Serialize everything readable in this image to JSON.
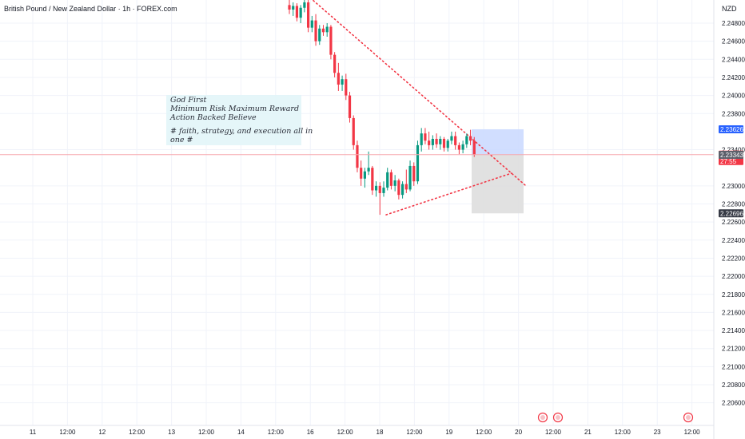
{
  "header": {
    "title": "British Pound / New Zealand Dollar · 1h · FOREX.com",
    "currency": "NZD"
  },
  "note": {
    "lines": [
      "God First",
      "Minimum Risk Maximum Reward",
      "Action Backed Believe",
      "",
      "# faith, strategy, and execution all in",
      "one #"
    ]
  },
  "colors": {
    "up": "#089981",
    "down": "#f23645",
    "trendline": "#f23645",
    "profit_zone": "#c9d8ff",
    "loss_zone": "#dedede",
    "note_bg": "#e0f5f8"
  },
  "chart_data": {
    "type": "candlestick",
    "symbol": "GBPNZD",
    "interval": "1h",
    "y_ticks": [
      "2.24800",
      "2.24600",
      "2.24400",
      "2.24200",
      "2.24000",
      "2.23800",
      "2.23400",
      "2.23000",
      "2.22800",
      "2.22600",
      "2.22400",
      "2.22200",
      "2.22000",
      "2.21800",
      "2.21600",
      "2.21400",
      "2.21200",
      "2.21000",
      "2.20800",
      "2.20600"
    ],
    "x_ticks": [
      "11",
      "12:00",
      "12",
      "12:00",
      "13",
      "12:00",
      "14",
      "12:00",
      "16",
      "12:00",
      "18",
      "12:00",
      "19",
      "12:00",
      "20",
      "12:00",
      "21",
      "12:00",
      "23",
      "12:00"
    ],
    "price_tags": [
      {
        "value": "2.23626",
        "color": "#2962ff",
        "lines": [
          "2.23626"
        ]
      },
      {
        "value": "2.23345",
        "color": "#f23645",
        "lines": [
          "2.23345",
          "27:55"
        ]
      },
      {
        "value": "2.23343",
        "color": "#5d606b",
        "lines": [
          "2.23343"
        ]
      },
      {
        "value": "2.22696",
        "color": "#363a45",
        "lines": [
          "2.22696"
        ]
      }
    ],
    "last_price": 2.23345,
    "position": {
      "entry": 2.23343,
      "target": 2.23626,
      "stop": 2.22696
    },
    "trendlines": [
      {
        "name": "upper-resistance",
        "style": "dotted"
      },
      {
        "name": "lower-support",
        "style": "dotted"
      }
    ],
    "candles": [
      [
        2.25,
        2.2506,
        2.249,
        2.2495
      ],
      [
        2.2495,
        2.2503,
        2.2488,
        2.2499
      ],
      [
        2.2499,
        2.2502,
        2.2482,
        2.2486
      ],
      [
        2.2486,
        2.25,
        2.248,
        2.2497
      ],
      [
        2.2497,
        2.2508,
        2.2492,
        2.2503
      ],
      [
        2.2503,
        2.2506,
        2.247,
        2.2475
      ],
      [
        2.2475,
        2.2488,
        2.247,
        2.2483
      ],
      [
        2.2483,
        2.249,
        2.2455,
        2.246
      ],
      [
        2.246,
        2.2478,
        2.2456,
        2.2474
      ],
      [
        2.2474,
        2.2478,
        2.2466,
        2.247
      ],
      [
        2.247,
        2.248,
        2.2465,
        2.2476
      ],
      [
        2.2476,
        2.2478,
        2.244,
        2.2445
      ],
      [
        2.2445,
        2.2448,
        2.242,
        2.2425
      ],
      [
        2.2425,
        2.2436,
        2.2405,
        2.2412
      ],
      [
        2.2412,
        2.2422,
        2.2405,
        2.2418
      ],
      [
        2.2418,
        2.2424,
        2.2395,
        2.24
      ],
      [
        2.24,
        2.2404,
        2.237,
        2.2375
      ],
      [
        2.2375,
        2.2378,
        2.234,
        2.2345
      ],
      [
        2.2345,
        2.235,
        2.2315,
        2.232
      ],
      [
        2.232,
        2.2328,
        2.23,
        2.2308
      ],
      [
        2.2308,
        2.232,
        2.2298,
        2.2316
      ],
      [
        2.2316,
        2.2338,
        2.2312,
        2.232
      ],
      [
        2.232,
        2.2322,
        2.229,
        2.2295
      ],
      [
        2.2295,
        2.2305,
        2.2288,
        2.23
      ],
      [
        2.23,
        2.2304,
        2.2268,
        2.2292
      ],
      [
        2.2292,
        2.2305,
        2.2288,
        2.2298
      ],
      [
        2.2298,
        2.232,
        2.2295,
        2.2315
      ],
      [
        2.2315,
        2.2318,
        2.2296,
        2.23
      ],
      [
        2.23,
        2.2312,
        2.2294,
        2.2306
      ],
      [
        2.2306,
        2.2308,
        2.2285,
        2.229
      ],
      [
        2.229,
        2.2305,
        2.2286,
        2.2302
      ],
      [
        2.2302,
        2.2318,
        2.2292,
        2.2296
      ],
      [
        2.2296,
        2.2328,
        2.2294,
        2.2322
      ],
      [
        2.2322,
        2.2326,
        2.23,
        2.2305
      ],
      [
        2.2305,
        2.235,
        2.2302,
        2.2345
      ],
      [
        2.2345,
        2.2364,
        2.2338,
        2.2358
      ],
      [
        2.2358,
        2.2364,
        2.2346,
        2.235
      ],
      [
        2.235,
        2.236,
        2.234,
        2.2345
      ],
      [
        2.2345,
        2.2356,
        2.234,
        2.2352
      ],
      [
        2.2352,
        2.2358,
        2.2342,
        2.2346
      ],
      [
        2.2346,
        2.2355,
        2.234,
        2.2352
      ],
      [
        2.2352,
        2.2354,
        2.2338,
        2.2342
      ],
      [
        2.2342,
        2.2352,
        2.2338,
        2.235
      ],
      [
        2.235,
        2.236,
        2.2346,
        2.2355
      ],
      [
        2.2355,
        2.236,
        2.234,
        2.2345
      ],
      [
        2.2345,
        2.2348,
        2.2335,
        2.234
      ],
      [
        2.234,
        2.235,
        2.2336,
        2.2346
      ],
      [
        2.2346,
        2.2358,
        2.2342,
        2.2355
      ],
      [
        2.2355,
        2.2362,
        2.2345,
        2.235
      ],
      [
        2.235,
        2.2354,
        2.2332,
        2.23345
      ]
    ]
  }
}
